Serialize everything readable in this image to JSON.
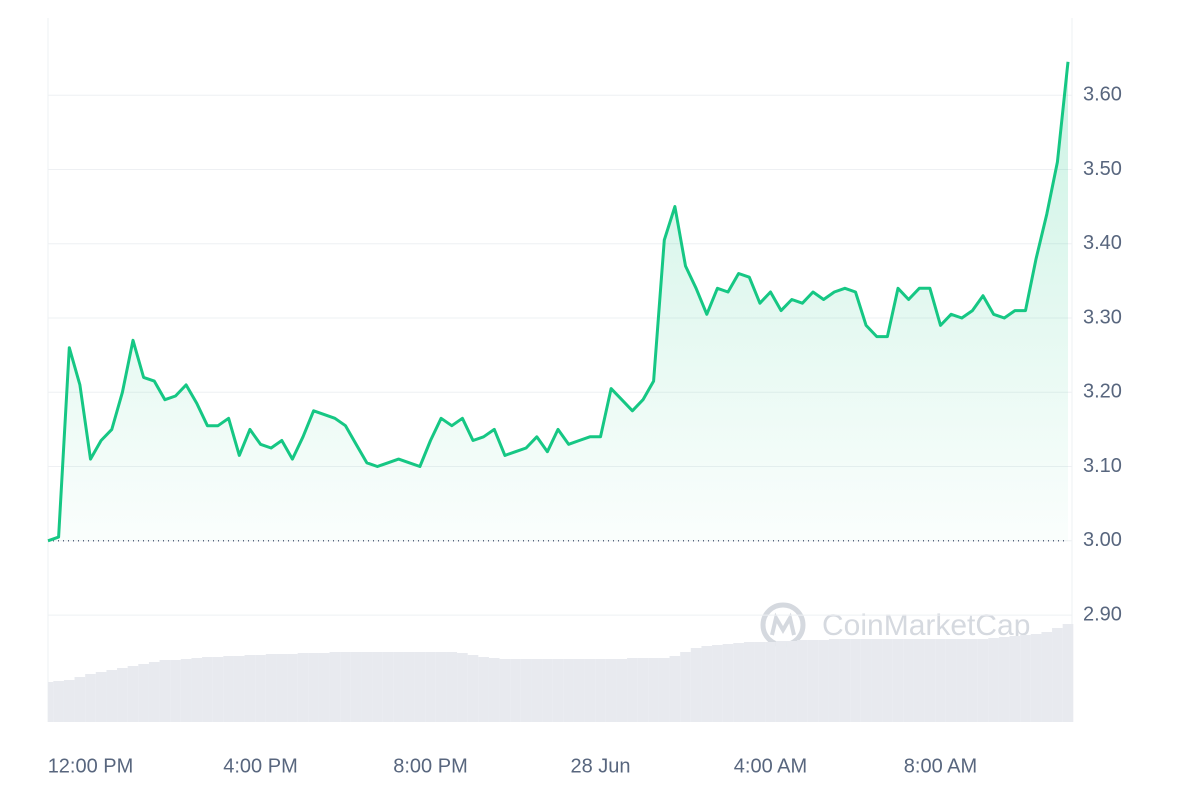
{
  "chart_data": {
    "type": "line",
    "color": "#16c784",
    "values": [
      3.0,
      3.005,
      3.26,
      3.21,
      3.11,
      3.135,
      3.15,
      3.2,
      3.27,
      3.22,
      3.215,
      3.19,
      3.195,
      3.21,
      3.185,
      3.155,
      3.155,
      3.165,
      3.115,
      3.15,
      3.13,
      3.125,
      3.135,
      3.11,
      3.14,
      3.175,
      3.17,
      3.165,
      3.155,
      3.13,
      3.105,
      3.1,
      3.105,
      3.11,
      3.105,
      3.1,
      3.135,
      3.165,
      3.155,
      3.165,
      3.135,
      3.14,
      3.15,
      3.115,
      3.12,
      3.125,
      3.14,
      3.12,
      3.15,
      3.13,
      3.135,
      3.14,
      3.14,
      3.205,
      3.19,
      3.175,
      3.19,
      3.215,
      3.405,
      3.45,
      3.37,
      3.34,
      3.305,
      3.34,
      3.335,
      3.36,
      3.355,
      3.32,
      3.335,
      3.31,
      3.325,
      3.32,
      3.335,
      3.325,
      3.335,
      3.34,
      3.335,
      3.29,
      3.275,
      3.275,
      3.34,
      3.325,
      3.34,
      3.34,
      3.29,
      3.305,
      3.3,
      3.31,
      3.33,
      3.305,
      3.3,
      3.31,
      3.31,
      3.38,
      3.44,
      3.51,
      3.645
    ],
    "baseline": 3.0,
    "xlim": [
      0,
      96
    ],
    "xticks": [
      {
        "value": 4,
        "label": "12:00 PM"
      },
      {
        "value": 20,
        "label": "4:00 PM"
      },
      {
        "value": 36,
        "label": "8:00 PM"
      },
      {
        "value": 52,
        "label": "28 Jun"
      },
      {
        "value": 68,
        "label": "4:00 AM"
      },
      {
        "value": 84,
        "label": "8:00 AM"
      }
    ],
    "ylim": [
      2.756,
      3.704
    ],
    "yticks": [
      {
        "value": 2.9,
        "label": "2.90"
      },
      {
        "value": 3.0,
        "label": "3.00"
      },
      {
        "value": 3.1,
        "label": "3.10"
      },
      {
        "value": 3.2,
        "label": "3.20"
      },
      {
        "value": 3.3,
        "label": "3.30"
      },
      {
        "value": 3.4,
        "label": "3.40"
      },
      {
        "value": 3.5,
        "label": "3.50"
      },
      {
        "value": 3.6,
        "label": "3.60"
      }
    ],
    "grid": true,
    "volume": {
      "color": "#e8eaef",
      "vlim": [
        0,
        100
      ],
      "values": [
        40,
        41,
        42,
        45,
        48,
        50,
        52,
        54,
        56,
        58,
        60,
        62,
        62,
        63,
        64,
        65,
        65,
        66,
        66,
        67,
        67,
        68,
        68,
        68,
        69,
        69,
        69,
        70,
        70,
        70,
        70,
        70,
        70,
        70,
        70,
        70,
        70,
        70,
        70,
        69,
        67,
        65,
        64,
        63,
        63,
        63,
        63,
        63,
        63,
        63,
        63,
        63,
        63,
        63,
        63,
        64,
        64,
        64,
        64,
        66,
        70,
        74,
        76,
        77,
        78,
        79,
        80,
        80,
        80,
        81,
        81,
        82,
        82,
        82,
        83,
        83,
        83,
        83,
        83,
        83,
        83,
        83,
        83,
        83,
        83,
        83,
        83,
        83,
        83,
        84,
        85,
        86,
        87,
        88,
        90,
        94,
        98
      ]
    },
    "watermark": "CoinMarketCap"
  }
}
